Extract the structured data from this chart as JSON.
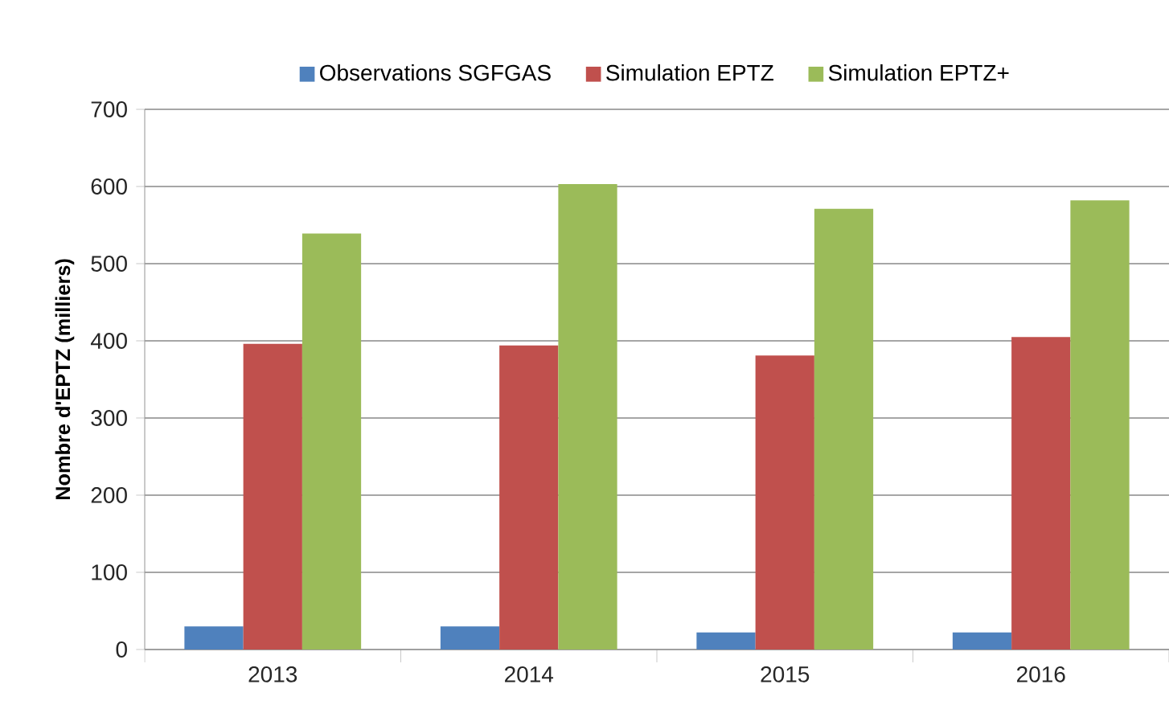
{
  "chart_data": {
    "type": "bar",
    "ylabel": "Nombre d'EPTZ (milliers)",
    "categories": [
      "2013",
      "2014",
      "2015",
      "2016"
    ],
    "series": [
      {
        "name": "Observations SGFGAS",
        "color": "#4f81bd",
        "values": [
          30,
          30,
          22,
          22
        ]
      },
      {
        "name": "Simulation EPTZ",
        "color": "#c0504d",
        "values": [
          396,
          394,
          381,
          405
        ]
      },
      {
        "name": "Simulation EPTZ+",
        "color": "#9bbb59",
        "values": [
          539,
          603,
          571,
          582
        ]
      }
    ],
    "ylim": [
      0,
      700
    ],
    "yticks": [
      0,
      100,
      200,
      300,
      400,
      500,
      600,
      700
    ],
    "grid": "y",
    "legend": "top"
  }
}
